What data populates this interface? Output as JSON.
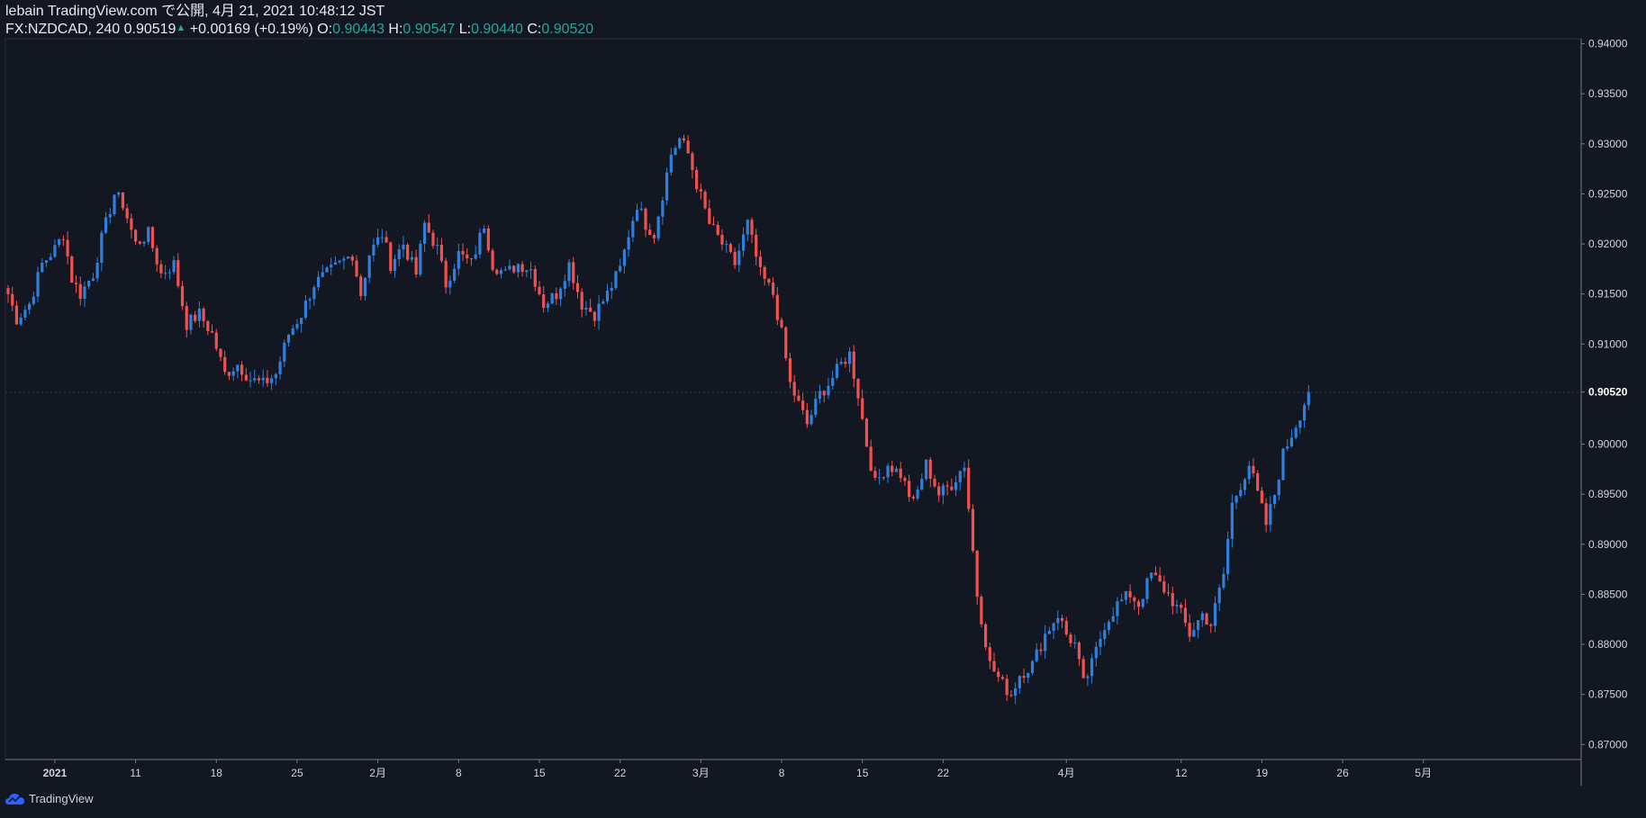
{
  "header": {
    "line1": "lebain TradingView.com で公開, 4月 21, 2021 10:48:12 JST",
    "symbol": "FX:NZDCAD, 240",
    "last": "0.90519",
    "change": "+0.00169 (+0.19%)",
    "o_label": "O:",
    "o_value": "0.90443",
    "h_label": "H:",
    "h_value": "0.90547",
    "l_label": "L:",
    "l_value": "0.90440",
    "c_label": "C:",
    "c_value": "0.90520"
  },
  "footer": {
    "brand": "TradingView"
  },
  "colors": {
    "up": "#2f7fdc",
    "down": "#f0524f",
    "background": "#131722",
    "axis_text": "#d1d4dc"
  },
  "chart_data": {
    "type": "candlestick",
    "interval": "240",
    "ylim": [
      0.8685,
      0.9405
    ],
    "y_ticks": [
      "0.94000",
      "0.93500",
      "0.93000",
      "0.92500",
      "0.92000",
      "0.91500",
      "0.91000",
      "0.90520",
      "0.90000",
      "0.89500",
      "0.89000",
      "0.88500",
      "0.88000",
      "0.87500",
      "0.87000"
    ],
    "current_price": "0.90520",
    "x_ticks": [
      {
        "label": "2021",
        "i": 11
      },
      {
        "label": "11",
        "i": 30
      },
      {
        "label": "18",
        "i": 49
      },
      {
        "label": "25",
        "i": 68
      },
      {
        "label": "2月",
        "i": 87
      },
      {
        "label": "8",
        "i": 106
      },
      {
        "label": "15",
        "i": 125
      },
      {
        "label": "22",
        "i": 144
      },
      {
        "label": "3月",
        "i": 163
      },
      {
        "label": "8",
        "i": 182
      },
      {
        "label": "15",
        "i": 201
      },
      {
        "label": "22",
        "i": 220
      },
      {
        "label": "4月",
        "i": 249
      },
      {
        "label": "12",
        "i": 276
      },
      {
        "label": "19",
        "i": 295
      },
      {
        "label": "26",
        "i": 314
      },
      {
        "label": "5月",
        "i": 333
      }
    ],
    "x_count": 355,
    "close_anchors": [
      [
        0,
        0.915
      ],
      [
        2,
        0.9125
      ],
      [
        5,
        0.914
      ],
      [
        8,
        0.918
      ],
      [
        11,
        0.9195
      ],
      [
        13,
        0.921
      ],
      [
        15,
        0.9165
      ],
      [
        17,
        0.915
      ],
      [
        20,
        0.917
      ],
      [
        22,
        0.9205
      ],
      [
        25,
        0.925
      ],
      [
        27,
        0.924
      ],
      [
        30,
        0.92
      ],
      [
        33,
        0.921
      ],
      [
        36,
        0.917
      ],
      [
        39,
        0.918
      ],
      [
        42,
        0.912
      ],
      [
        45,
        0.913
      ],
      [
        48,
        0.911
      ],
      [
        51,
        0.907
      ],
      [
        54,
        0.908
      ],
      [
        57,
        0.9065
      ],
      [
        60,
        0.906
      ],
      [
        63,
        0.907
      ],
      [
        66,
        0.911
      ],
      [
        69,
        0.913
      ],
      [
        72,
        0.916
      ],
      [
        75,
        0.917
      ],
      [
        78,
        0.918
      ],
      [
        81,
        0.919
      ],
      [
        83,
        0.915
      ],
      [
        85,
        0.919
      ],
      [
        88,
        0.921
      ],
      [
        90,
        0.918
      ],
      [
        93,
        0.92
      ],
      [
        96,
        0.917
      ],
      [
        98,
        0.922
      ],
      [
        101,
        0.9195
      ],
      [
        103,
        0.916
      ],
      [
        106,
        0.919
      ],
      [
        109,
        0.918
      ],
      [
        112,
        0.922
      ],
      [
        114,
        0.918
      ],
      [
        117,
        0.917
      ],
      [
        120,
        0.918
      ],
      [
        123,
        0.9175
      ],
      [
        126,
        0.914
      ],
      [
        129,
        0.915
      ],
      [
        132,
        0.918
      ],
      [
        135,
        0.914
      ],
      [
        138,
        0.913
      ],
      [
        141,
        0.915
      ],
      [
        144,
        0.9175
      ],
      [
        146,
        0.921
      ],
      [
        148,
        0.924
      ],
      [
        150,
        0.922
      ],
      [
        152,
        0.921
      ],
      [
        154,
        0.925
      ],
      [
        156,
        0.929
      ],
      [
        158,
        0.9305
      ],
      [
        160,
        0.929
      ],
      [
        162,
        0.926
      ],
      [
        165,
        0.922
      ],
      [
        168,
        0.92
      ],
      [
        171,
        0.918
      ],
      [
        174,
        0.922
      ],
      [
        177,
        0.917
      ],
      [
        180,
        0.915
      ],
      [
        182,
        0.911
      ],
      [
        184,
        0.906
      ],
      [
        186,
        0.904
      ],
      [
        188,
        0.902
      ],
      [
        191,
        0.905
      ],
      [
        193,
        0.906
      ],
      [
        196,
        0.908
      ],
      [
        198,
        0.909
      ],
      [
        200,
        0.905
      ],
      [
        202,
        0.9
      ],
      [
        204,
        0.896
      ],
      [
        207,
        0.898
      ],
      [
        210,
        0.897
      ],
      [
        213,
        0.894
      ],
      [
        216,
        0.898
      ],
      [
        219,
        0.895
      ],
      [
        222,
        0.896
      ],
      [
        225,
        0.898
      ],
      [
        228,
        0.885
      ],
      [
        231,
        0.878
      ],
      [
        234,
        0.876
      ],
      [
        236,
        0.875
      ],
      [
        238,
        0.877
      ],
      [
        241,
        0.878
      ],
      [
        244,
        0.881
      ],
      [
        247,
        0.883
      ],
      [
        249,
        0.881
      ],
      [
        251,
        0.88
      ],
      [
        253,
        0.876
      ],
      [
        255,
        0.878
      ],
      [
        258,
        0.882
      ],
      [
        261,
        0.884
      ],
      [
        264,
        0.885
      ],
      [
        266,
        0.884
      ],
      [
        269,
        0.887
      ],
      [
        271,
        0.886
      ],
      [
        273,
        0.885
      ],
      [
        276,
        0.883
      ],
      [
        278,
        0.881
      ],
      [
        281,
        0.883
      ],
      [
        283,
        0.882
      ],
      [
        286,
        0.887
      ],
      [
        288,
        0.894
      ],
      [
        290,
        0.896
      ],
      [
        292,
        0.898
      ],
      [
        294,
        0.895
      ],
      [
        296,
        0.892
      ],
      [
        298,
        0.895
      ],
      [
        300,
        0.899
      ],
      [
        302,
        0.901
      ],
      [
        304,
        0.903
      ],
      [
        306,
        0.9052
      ]
    ]
  }
}
